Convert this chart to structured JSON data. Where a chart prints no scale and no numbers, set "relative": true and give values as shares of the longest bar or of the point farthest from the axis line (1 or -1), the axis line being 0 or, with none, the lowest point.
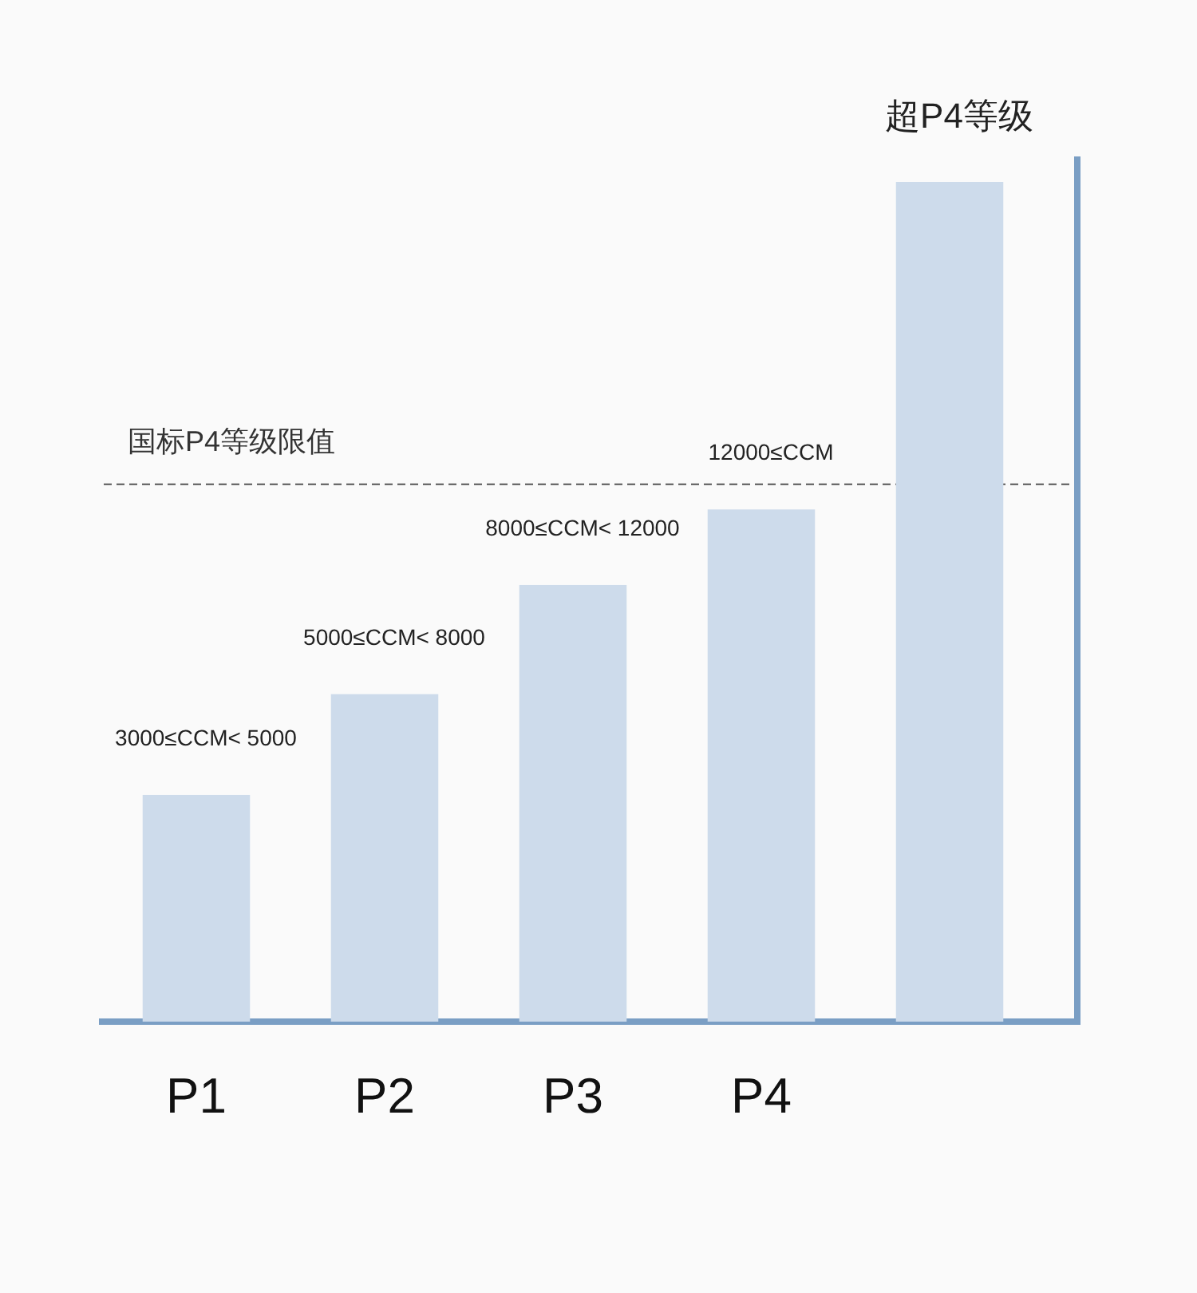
{
  "chart_data": {
    "type": "bar",
    "relative": true,
    "categories": [
      "P1",
      "P2",
      "P3",
      "P4",
      null
    ],
    "values": [
      0.27,
      0.39,
      0.52,
      0.61,
      1
    ],
    "color": "#cddbeb",
    "annotations": [
      {
        "text": "3000≤CCM< 5000",
        "x": "P1",
        "y": 0.27
      },
      {
        "text": "5000≤CCM< 8000",
        "x": "P2",
        "y": 0.39
      },
      {
        "text": "8000≤CCM< 12000",
        "x": "P3",
        "y": 0.52
      },
      {
        "text": "12000≤CCM",
        "x": "P4",
        "y": 0.61
      },
      {
        "text": "超P4等级",
        "y": 1
      }
    ],
    "ref_lines": [
      {
        "axis": "y",
        "value": 0.64,
        "label": "国标P4等级限值",
        "color": "#555555",
        "line_style": "dashed"
      }
    ]
  }
}
